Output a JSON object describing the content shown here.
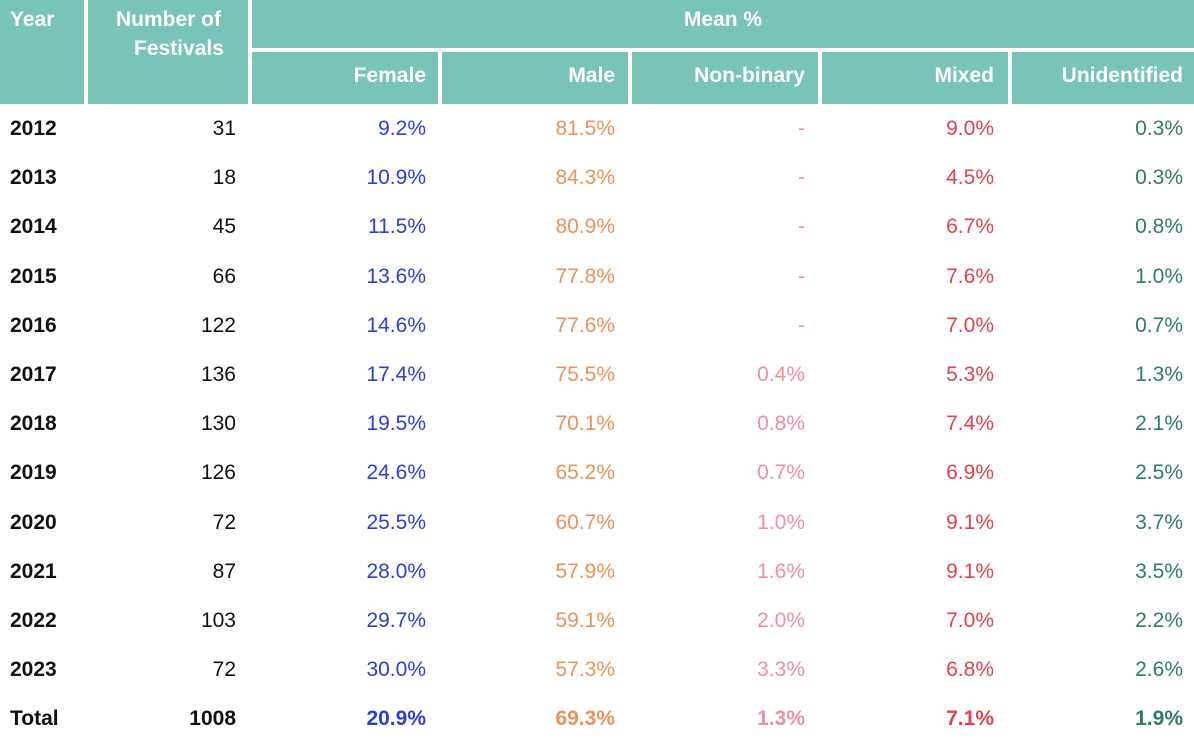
{
  "colors": {
    "header_bg": "#78c4b8",
    "female": "#2a3fd6",
    "male": "#e8935a",
    "nonbinary": "#ee8fa1",
    "mixed": "#e0434b",
    "unidentified": "#2f7a6e"
  },
  "chart_data": {
    "type": "table",
    "header": {
      "year": "Year",
      "num_line1": "Number of",
      "num_line2": "Festivals",
      "group": "Mean %",
      "female": "Female",
      "male": "Male",
      "nonbinary": "Non-binary",
      "mixed": "Mixed",
      "unidentified": "Unidentified"
    },
    "columns": [
      "Year",
      "Number of Festivals",
      "Female",
      "Male",
      "Non-binary",
      "Mixed",
      "Unidentified"
    ],
    "rows": [
      {
        "year": "2012",
        "festivals": "31",
        "female": "9.2%",
        "male": "81.5%",
        "nonbinary": "-",
        "mixed": "9.0%",
        "unidentified": "0.3%"
      },
      {
        "year": "2013",
        "festivals": "18",
        "female": "10.9%",
        "male": "84.3%",
        "nonbinary": "-",
        "mixed": "4.5%",
        "unidentified": "0.3%"
      },
      {
        "year": "2014",
        "festivals": "45",
        "female": "11.5%",
        "male": "80.9%",
        "nonbinary": "-",
        "mixed": "6.7%",
        "unidentified": "0.8%"
      },
      {
        "year": "2015",
        "festivals": "66",
        "female": "13.6%",
        "male": "77.8%",
        "nonbinary": "-",
        "mixed": "7.6%",
        "unidentified": "1.0%"
      },
      {
        "year": "2016",
        "festivals": "122",
        "female": "14.6%",
        "male": "77.6%",
        "nonbinary": "-",
        "mixed": "7.0%",
        "unidentified": "0.7%"
      },
      {
        "year": "2017",
        "festivals": "136",
        "female": "17.4%",
        "male": "75.5%",
        "nonbinary": "0.4%",
        "mixed": "5.3%",
        "unidentified": "1.3%"
      },
      {
        "year": "2018",
        "festivals": "130",
        "female": "19.5%",
        "male": "70.1%",
        "nonbinary": "0.8%",
        "mixed": "7.4%",
        "unidentified": "2.1%"
      },
      {
        "year": "2019",
        "festivals": "126",
        "female": "24.6%",
        "male": "65.2%",
        "nonbinary": "0.7%",
        "mixed": "6.9%",
        "unidentified": "2.5%"
      },
      {
        "year": "2020",
        "festivals": "72",
        "female": "25.5%",
        "male": "60.7%",
        "nonbinary": "1.0%",
        "mixed": "9.1%",
        "unidentified": "3.7%"
      },
      {
        "year": "2021",
        "festivals": "87",
        "female": "28.0%",
        "male": "57.9%",
        "nonbinary": "1.6%",
        "mixed": "9.1%",
        "unidentified": "3.5%"
      },
      {
        "year": "2022",
        "festivals": "103",
        "female": "29.7%",
        "male": "59.1%",
        "nonbinary": "2.0%",
        "mixed": "7.0%",
        "unidentified": "2.2%"
      },
      {
        "year": "2023",
        "festivals": "72",
        "female": "30.0%",
        "male": "57.3%",
        "nonbinary": "3.3%",
        "mixed": "6.8%",
        "unidentified": "2.6%"
      }
    ],
    "total": {
      "year": "Total",
      "festivals": "1008",
      "female": "20.9%",
      "male": "69.3%",
      "nonbinary": "1.3%",
      "mixed": "7.1%",
      "unidentified": "1.9%"
    }
  }
}
